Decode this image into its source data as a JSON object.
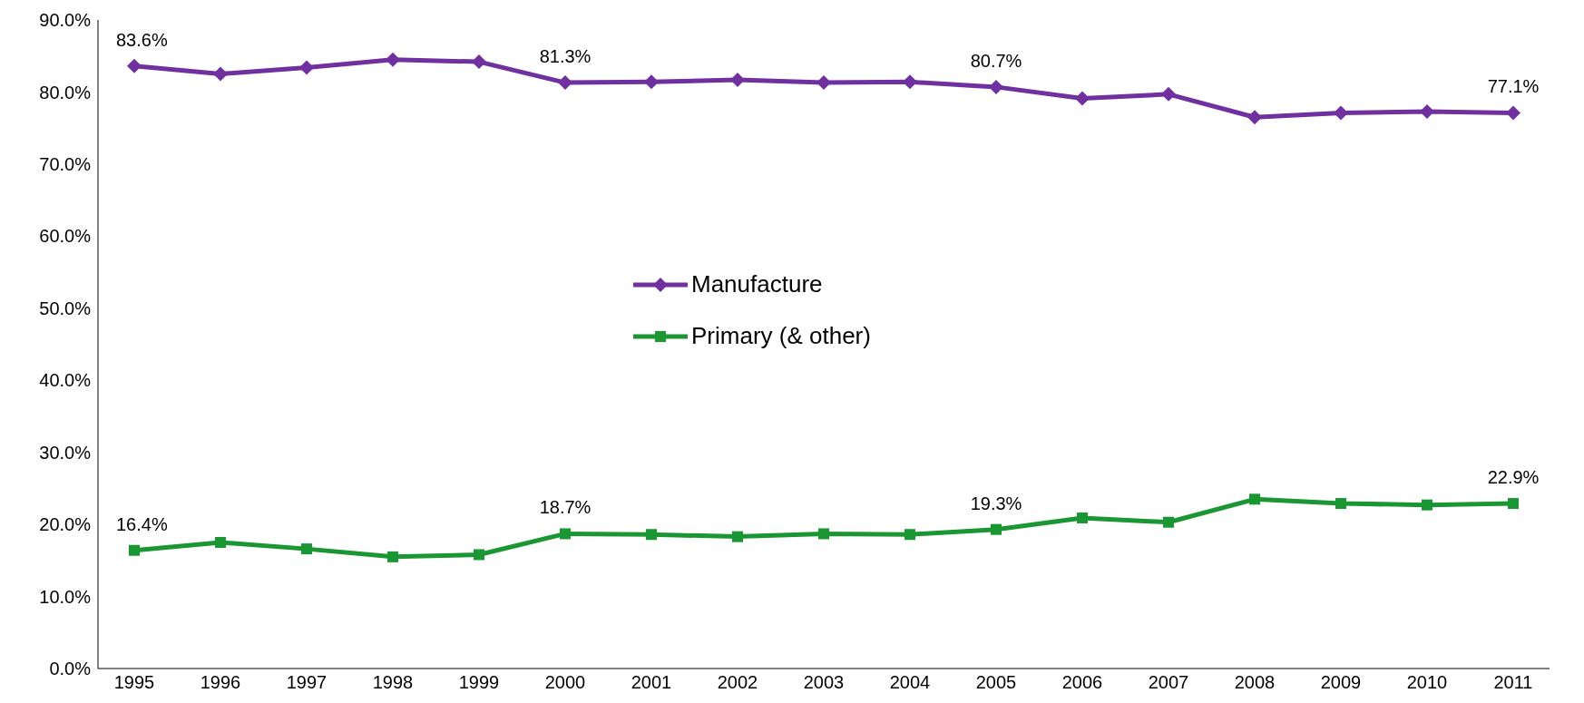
{
  "chart_data": {
    "type": "line",
    "categories": [
      "1995",
      "1996",
      "1997",
      "1998",
      "1999",
      "2000",
      "2001",
      "2002",
      "2003",
      "2004",
      "2005",
      "2006",
      "2007",
      "2008",
      "2009",
      "2010",
      "2011"
    ],
    "series": [
      {
        "name": "Manufacture",
        "color": "#7030a0",
        "marker": "diamond",
        "values": [
          83.6,
          82.5,
          83.4,
          84.5,
          84.2,
          81.3,
          81.4,
          81.7,
          81.3,
          81.4,
          80.7,
          79.1,
          79.7,
          76.5,
          77.1,
          77.3,
          77.1
        ],
        "value_labels": [
          "83.6%",
          null,
          null,
          null,
          null,
          "81.3%",
          null,
          null,
          null,
          null,
          "80.7%",
          null,
          null,
          null,
          null,
          null,
          "77.1%"
        ]
      },
      {
        "name": "Primary (& other)",
        "color": "#1a9632",
        "marker": "square",
        "values": [
          16.4,
          17.5,
          16.6,
          15.5,
          15.8,
          18.7,
          18.6,
          18.3,
          18.7,
          18.6,
          19.3,
          20.9,
          20.3,
          23.5,
          22.9,
          22.7,
          22.9
        ],
        "value_labels": [
          "16.4%",
          null,
          null,
          null,
          null,
          "18.7%",
          null,
          null,
          null,
          null,
          "19.3%",
          null,
          null,
          null,
          null,
          null,
          "22.9%"
        ]
      }
    ],
    "ylim": [
      0,
      90
    ],
    "yticks": [
      {
        "value": 0,
        "label": "0.0%"
      },
      {
        "value": 10,
        "label": "10.0%"
      },
      {
        "value": 20,
        "label": "20.0%"
      },
      {
        "value": 30,
        "label": "30.0%"
      },
      {
        "value": 40,
        "label": "40.0%"
      },
      {
        "value": 50,
        "label": "50.0%"
      },
      {
        "value": 60,
        "label": "60.0%"
      },
      {
        "value": 70,
        "label": "70.0%"
      },
      {
        "value": 80,
        "label": "80.0%"
      },
      {
        "value": 90,
        "label": "90.0%"
      }
    ],
    "grid": false,
    "legend": "center",
    "line_style": "solid"
  }
}
